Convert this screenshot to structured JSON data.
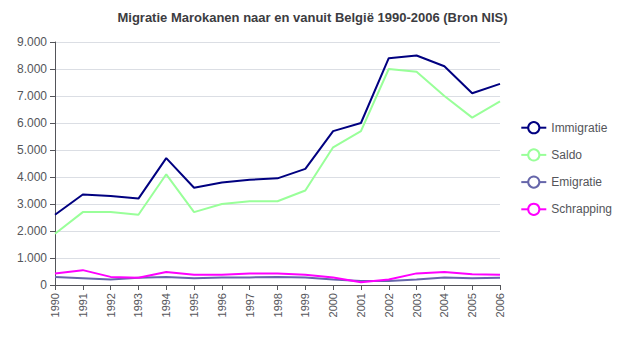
{
  "chart_data": {
    "type": "line",
    "title": "Migratie Marokanen naar en vanuit België 1990-2006 (Bron NIS)",
    "x": [
      1990,
      1991,
      1992,
      1993,
      1994,
      1995,
      1996,
      1997,
      1998,
      1999,
      2000,
      2001,
      2002,
      2003,
      2004,
      2005,
      2006
    ],
    "series": [
      {
        "name": "Immigratie",
        "color": "#000080",
        "values": [
          2600,
          3350,
          3300,
          3200,
          4700,
          3600,
          3800,
          3900,
          3950,
          4300,
          5700,
          6000,
          8400,
          8500,
          8100,
          7100,
          7450
        ]
      },
      {
        "name": "Saldo",
        "color": "#99FF99",
        "values": [
          1900,
          2700,
          2700,
          2600,
          4100,
          2700,
          3000,
          3100,
          3100,
          3500,
          5100,
          5700,
          8000,
          7900,
          7000,
          6200,
          6800
        ]
      },
      {
        "name": "Emigratie",
        "color": "#6666AA",
        "values": [
          300,
          250,
          200,
          270,
          300,
          250,
          280,
          280,
          300,
          280,
          200,
          150,
          150,
          200,
          280,
          250,
          270
        ]
      },
      {
        "name": "Schrapping",
        "color": "#FF00FF",
        "values": [
          430,
          550,
          300,
          270,
          480,
          380,
          380,
          430,
          430,
          380,
          280,
          100,
          200,
          430,
          480,
          400,
          380
        ]
      }
    ],
    "xlim": [
      1990,
      2006
    ],
    "xticks": [
      1990,
      1991,
      1992,
      1993,
      1994,
      1995,
      1996,
      1997,
      1998,
      1999,
      2000,
      2001,
      2002,
      2003,
      2004,
      2005,
      2006
    ],
    "ylim": [
      0,
      9000
    ],
    "yticks": [
      0,
      {
        "value": 1000,
        "label": "1.000"
      },
      {
        "value": 2000,
        "label": "2.000"
      },
      {
        "value": 3000,
        "label": "3.000"
      },
      {
        "value": 4000,
        "label": "4.000"
      },
      {
        "value": 5000,
        "label": "5.000"
      },
      {
        "value": 6000,
        "label": "6.000"
      },
      {
        "value": 7000,
        "label": "7.000"
      },
      {
        "value": 8000,
        "label": "8.000"
      },
      {
        "value": 9000,
        "label": "9.000"
      }
    ],
    "grid": true,
    "legend": "right"
  }
}
